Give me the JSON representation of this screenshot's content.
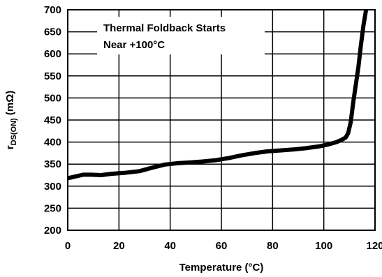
{
  "chart_data": {
    "type": "line",
    "xlabel": "Temperature (°C)",
    "ylabel_main": "r",
    "ylabel_sub": "DS(ON)",
    "ylabel_unit": " (mΩ)",
    "xlim": [
      0,
      120
    ],
    "ylim": [
      200,
      700
    ],
    "xticks": [
      0,
      20,
      40,
      60,
      80,
      100,
      120
    ],
    "yticks": [
      200,
      250,
      300,
      350,
      400,
      450,
      500,
      550,
      600,
      650,
      700
    ],
    "grid": true,
    "annotation": [
      "Thermal Foldback Starts",
      "Near +100°C"
    ],
    "line_color": "#000000",
    "series": [
      {
        "x": [
          0,
          3,
          6,
          9,
          13,
          17,
          22,
          28,
          33,
          38,
          43,
          48,
          53,
          58,
          63,
          68,
          73,
          78,
          83,
          88,
          93,
          98,
          102,
          105,
          107,
          108.5,
          109.5,
          110.5,
          111.5,
          112.5,
          113.5,
          114.5,
          115.5,
          116.5
        ],
        "y": [
          318,
          322,
          326,
          326,
          325,
          328,
          330,
          334,
          342,
          349,
          352,
          354,
          356,
          359,
          364,
          370,
          375,
          379,
          381,
          383,
          386,
          390,
          395,
          400,
          405,
          410,
          420,
          445,
          490,
          530,
          570,
          620,
          665,
          700
        ]
      }
    ]
  }
}
